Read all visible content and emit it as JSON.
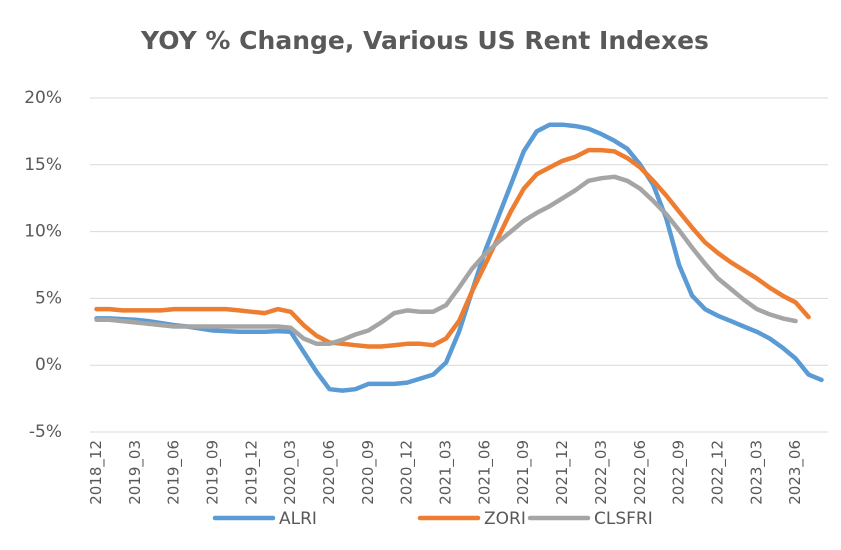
{
  "chart_data": {
    "type": "line",
    "title": "YOY % Change, Various US Rent Indexes",
    "categories": [
      "2018_12",
      null,
      null,
      "2019_03",
      null,
      null,
      "2019_06",
      null,
      null,
      "2019_09",
      null,
      null,
      "2019_12",
      null,
      null,
      "2020_03",
      null,
      null,
      "2020_06",
      null,
      null,
      "2020_09",
      null,
      null,
      "2020_12",
      null,
      null,
      "2021_03",
      null,
      null,
      "2021_06",
      null,
      null,
      "2021_09",
      null,
      null,
      "2021_12",
      null,
      null,
      "2022_03",
      null,
      null,
      "2022_06",
      null,
      null,
      "2022_09",
      null,
      null,
      "2022_12",
      null,
      null,
      "2023_03",
      null,
      null,
      "2023_06",
      null,
      null
    ],
    "series": [
      {
        "name": "ALRI",
        "color": "#5b9bd5",
        "values": [
          3.5,
          3.5,
          3.45,
          3.4,
          3.3,
          3.15,
          3.0,
          2.9,
          2.75,
          2.6,
          2.55,
          2.5,
          2.5,
          2.5,
          2.55,
          2.5,
          1.0,
          -0.5,
          -1.8,
          -1.9,
          -1.8,
          -1.4,
          -1.4,
          -1.4,
          -1.3,
          -1.0,
          -0.7,
          0.2,
          2.5,
          5.5,
          8.5,
          11,
          13.5,
          16,
          17.5,
          18,
          18,
          17.9,
          17.7,
          17.3,
          16.8,
          16.2,
          15.0,
          13.5,
          11.0,
          7.5,
          5.2,
          4.2,
          3.7,
          3.3,
          2.9,
          2.5,
          2.0,
          1.3,
          0.5,
          -0.7,
          -1.1
        ]
      },
      {
        "name": "ZORI",
        "color": "#ed7d31",
        "values": [
          4.2,
          4.2,
          4.1,
          4.1,
          4.1,
          4.1,
          4.2,
          4.2,
          4.2,
          4.2,
          4.2,
          4.1,
          4.0,
          3.9,
          4.2,
          4.0,
          3.0,
          2.2,
          1.7,
          1.6,
          1.5,
          1.4,
          1.4,
          1.5,
          1.6,
          1.6,
          1.5,
          2.0,
          3.3,
          5.5,
          7.5,
          9.5,
          11.5,
          13.2,
          14.3,
          14.8,
          15.3,
          15.6,
          16.1,
          16.1,
          16.0,
          15.5,
          14.8,
          13.8,
          12.7,
          11.5,
          10.3,
          9.2,
          8.4,
          7.7,
          7.1,
          6.5,
          5.8,
          5.2,
          4.7,
          3.6,
          null
        ]
      },
      {
        "name": "CLSFRI",
        "color": "#a5a5a5",
        "values": [
          3.4,
          3.4,
          3.3,
          3.2,
          3.1,
          3.0,
          2.9,
          2.9,
          2.9,
          2.9,
          2.9,
          2.9,
          2.9,
          2.9,
          2.9,
          2.8,
          2.0,
          1.6,
          1.6,
          1.9,
          2.3,
          2.6,
          3.2,
          3.9,
          4.1,
          4.0,
          4.0,
          4.5,
          5.8,
          7.2,
          8.3,
          9.2,
          10.0,
          10.8,
          11.4,
          11.9,
          12.5,
          13.1,
          13.8,
          14.0,
          14.1,
          13.8,
          13.2,
          12.3,
          11.3,
          10.1,
          8.8,
          7.6,
          6.5,
          5.7,
          4.9,
          4.2,
          3.8,
          3.5,
          3.3,
          null,
          null
        ]
      }
    ],
    "ylim": [
      -5,
      20
    ],
    "yticks": [
      {
        "value": -5,
        "label": "-5%"
      },
      {
        "value": 0,
        "label": "0%"
      },
      {
        "value": 5,
        "label": "5%"
      },
      {
        "value": 10,
        "label": "10%"
      },
      {
        "value": 15,
        "label": "15%"
      },
      {
        "value": 20,
        "label": "20%"
      }
    ],
    "grid": true,
    "legend": "bottom"
  }
}
